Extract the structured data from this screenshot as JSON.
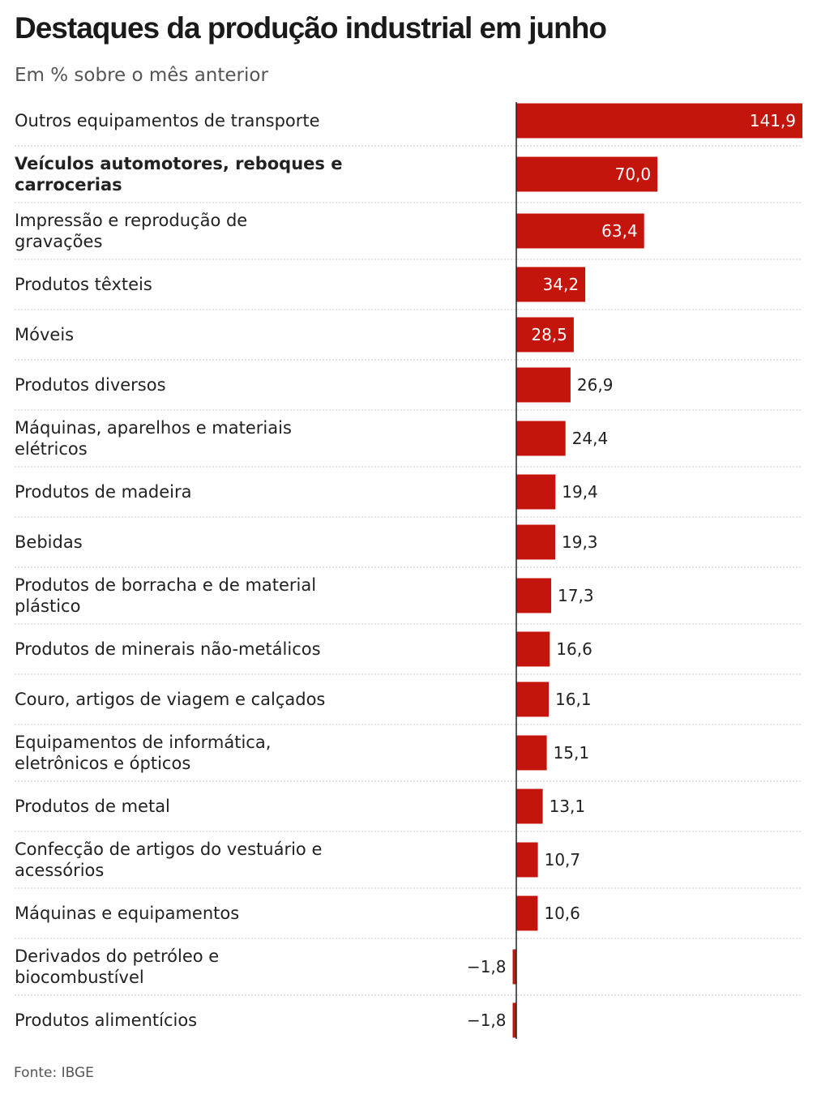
{
  "title": "Destaques da produção industrial em junho",
  "subtitle": "Em % sobre o mês anterior",
  "source": "Fonte: IBGE",
  "colors": {
    "bar": "#c4150c",
    "separator": "#cccccc",
    "axis": "#222222"
  },
  "chart_data": {
    "type": "bar",
    "orientation": "horizontal",
    "title": "Destaques da produção industrial em junho",
    "subtitle": "Em % sobre o mês anterior",
    "categories": [
      {
        "label": [
          "Outros equipamentos de transporte"
        ],
        "value": 141.9,
        "display": "141,9",
        "bold": false
      },
      {
        "label": [
          "Veículos automotores, reboques e",
          "carrocerias"
        ],
        "value": 70.0,
        "display": "70,0",
        "bold": true
      },
      {
        "label": [
          "Impressão e reprodução de",
          "gravações"
        ],
        "value": 63.4,
        "display": "63,4",
        "bold": false
      },
      {
        "label": [
          "Produtos têxteis"
        ],
        "value": 34.2,
        "display": "34,2",
        "bold": false
      },
      {
        "label": [
          "Móveis"
        ],
        "value": 28.5,
        "display": "28,5",
        "bold": false
      },
      {
        "label": [
          "Produtos diversos"
        ],
        "value": 26.9,
        "display": "26,9",
        "bold": false
      },
      {
        "label": [
          "Máquinas, aparelhos e materiais",
          "elétricos"
        ],
        "value": 24.4,
        "display": "24,4",
        "bold": false
      },
      {
        "label": [
          "Produtos de madeira"
        ],
        "value": 19.4,
        "display": "19,4",
        "bold": false
      },
      {
        "label": [
          "Bebidas"
        ],
        "value": 19.3,
        "display": "19,3",
        "bold": false
      },
      {
        "label": [
          "Produtos de borracha e de material",
          "plástico"
        ],
        "value": 17.3,
        "display": "17,3",
        "bold": false
      },
      {
        "label": [
          "Produtos de minerais não-metálicos"
        ],
        "value": 16.6,
        "display": "16,6",
        "bold": false
      },
      {
        "label": [
          "Couro, artigos de viagem e calçados"
        ],
        "value": 16.1,
        "display": "16,1",
        "bold": false
      },
      {
        "label": [
          "Equipamentos de informática,",
          "eletrônicos e ópticos"
        ],
        "value": 15.1,
        "display": "15,1",
        "bold": false
      },
      {
        "label": [
          "Produtos de metal"
        ],
        "value": 13.1,
        "display": "13,1",
        "bold": false
      },
      {
        "label": [
          "Confecção de artigos do vestuário e",
          "acessórios"
        ],
        "value": 10.7,
        "display": "10,7",
        "bold": false
      },
      {
        "label": [
          "Máquinas e equipamentos"
        ],
        "value": 10.6,
        "display": "10,6",
        "bold": false
      },
      {
        "label": [
          "Derivados do petróleo e",
          "biocombustível"
        ],
        "value": -1.8,
        "display": "−1,8",
        "bold": false
      },
      {
        "label": [
          "Produtos alimentícios"
        ],
        "value": -1.8,
        "display": "−1,8",
        "bold": false
      }
    ],
    "xlim": [
      -2,
      141.9
    ],
    "grid": false,
    "legend": "none"
  }
}
